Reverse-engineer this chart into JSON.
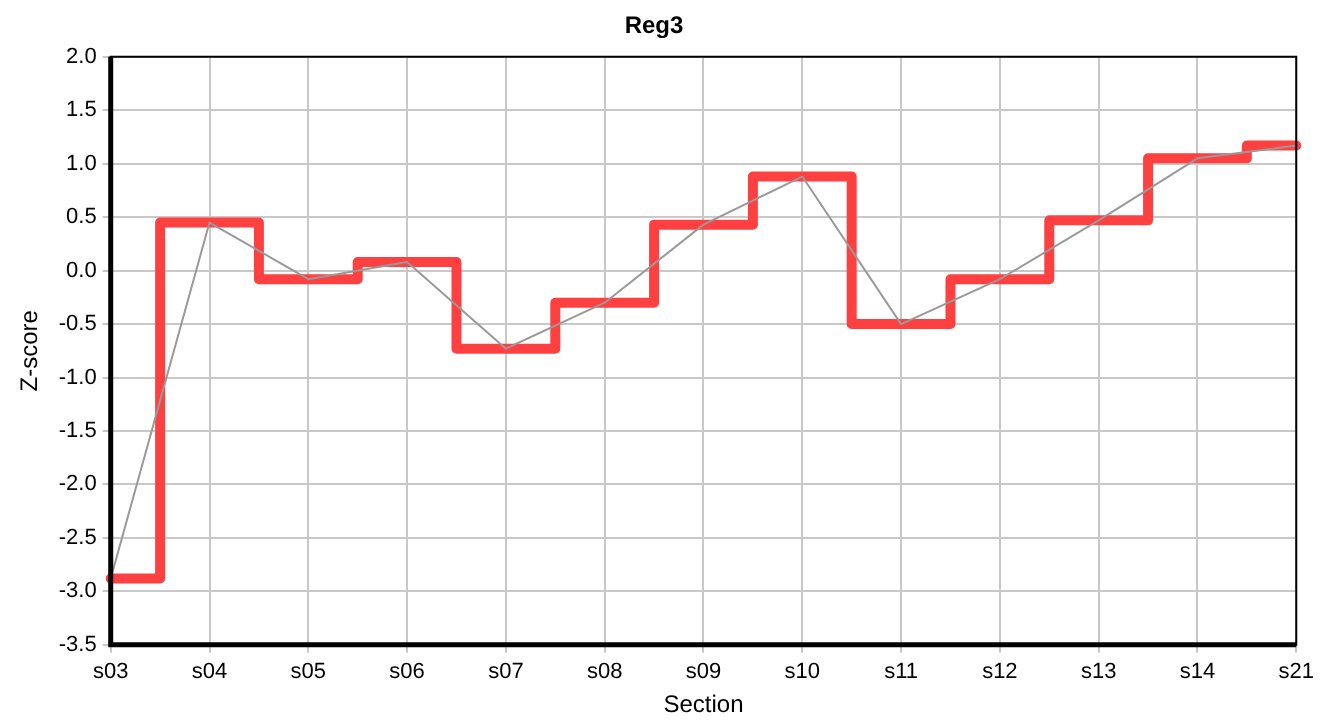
{
  "chart_data": {
    "type": "step",
    "title": "Reg3",
    "xlabel": "Section",
    "ylabel": "Z-score",
    "categories": [
      "s03",
      "s04",
      "s05",
      "s06",
      "s07",
      "s08",
      "s09",
      "s10",
      "s11",
      "s12",
      "s13",
      "s14",
      "s21"
    ],
    "series": [
      {
        "type": "step",
        "color": "#ff4040",
        "values": [
          -2.88,
          0.45,
          -0.08,
          0.08,
          -0.73,
          -0.3,
          0.43,
          0.88,
          -0.5,
          -0.08,
          0.47,
          1.05,
          1.17
        ]
      },
      {
        "type": "line",
        "color": "#999999",
        "values": [
          -2.88,
          0.45,
          -0.08,
          0.08,
          -0.73,
          -0.3,
          0.43,
          0.88,
          -0.5,
          -0.08,
          0.47,
          1.05,
          1.17
        ]
      }
    ],
    "ylim": [
      -3.5,
      2.0
    ],
    "yticks": [
      {
        "value": -3.5,
        "label": "-3.5"
      },
      {
        "value": -3,
        "label": "-3.0"
      },
      {
        "value": -2.5,
        "label": "-2.5"
      },
      {
        "value": -2,
        "label": "-2.0"
      },
      {
        "value": -1.5,
        "label": "-1.5"
      },
      {
        "value": -1,
        "label": "-1.0"
      },
      {
        "value": -0.5,
        "label": "-0.5"
      },
      {
        "value": 0,
        "label": "0.0"
      },
      {
        "value": 0.5,
        "label": "0.5"
      },
      {
        "value": 1,
        "label": "1.0"
      },
      {
        "value": 1.5,
        "label": "1.5"
      },
      {
        "value": 2,
        "label": "2.0"
      }
    ],
    "grid": true,
    "legend": false,
    "marker": "none"
  }
}
